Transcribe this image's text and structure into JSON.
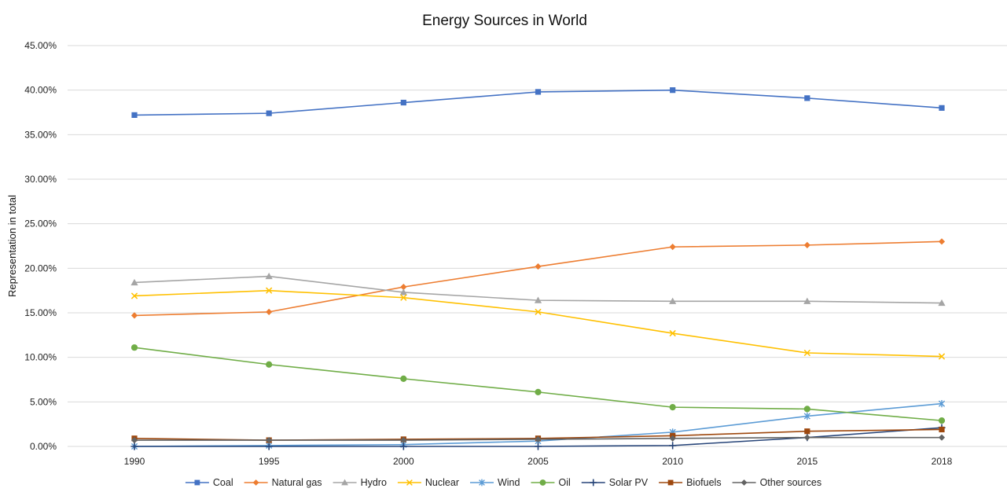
{
  "chart_data": {
    "type": "line",
    "title": "Energy Sources in World",
    "xlabel": "",
    "ylabel": "Representation in total",
    "x": [
      "1990",
      "1995",
      "2000",
      "2005",
      "2010",
      "2015",
      "2018"
    ],
    "ylim": [
      0,
      45
    ],
    "yticks": [
      "0.00%",
      "5.00%",
      "10.00%",
      "15.00%",
      "20.00%",
      "25.00%",
      "30.00%",
      "35.00%",
      "40.00%",
      "45.00%"
    ],
    "grid": true,
    "legend_position": "bottom",
    "series": [
      {
        "name": "Coal",
        "color": "#4472C4",
        "marker": "square",
        "values": [
          37.2,
          37.4,
          38.6,
          39.8,
          40.0,
          39.1,
          38.0
        ]
      },
      {
        "name": "Natural gas",
        "color": "#ED7D31",
        "marker": "diamond",
        "values": [
          14.7,
          15.1,
          17.9,
          20.2,
          22.4,
          22.6,
          23.0
        ]
      },
      {
        "name": "Hydro",
        "color": "#A5A5A5",
        "marker": "triangle",
        "values": [
          18.4,
          19.1,
          17.3,
          16.4,
          16.3,
          16.3,
          16.1
        ]
      },
      {
        "name": "Nuclear",
        "color": "#FFC000",
        "marker": "x",
        "values": [
          16.9,
          17.5,
          16.7,
          15.1,
          12.7,
          10.5,
          10.1
        ]
      },
      {
        "name": "Wind",
        "color": "#5B9BD5",
        "marker": "star",
        "values": [
          0.0,
          0.1,
          0.2,
          0.6,
          1.6,
          3.4,
          4.8
        ]
      },
      {
        "name": "Oil",
        "color": "#70AD47",
        "marker": "circle",
        "values": [
          11.1,
          9.2,
          7.6,
          6.1,
          4.4,
          4.2,
          2.9
        ]
      },
      {
        "name": "Solar PV",
        "color": "#264478",
        "marker": "plus",
        "values": [
          0.0,
          0.0,
          0.0,
          0.0,
          0.1,
          1.0,
          2.1
        ]
      },
      {
        "name": "Biofuels",
        "color": "#9E480E",
        "marker": "square",
        "values": [
          0.9,
          0.7,
          0.8,
          0.9,
          1.2,
          1.7,
          1.9
        ]
      },
      {
        "name": "Other sources",
        "color": "#636363",
        "marker": "diamond",
        "values": [
          0.7,
          0.7,
          0.7,
          0.8,
          0.9,
          1.0,
          1.0
        ]
      }
    ]
  }
}
